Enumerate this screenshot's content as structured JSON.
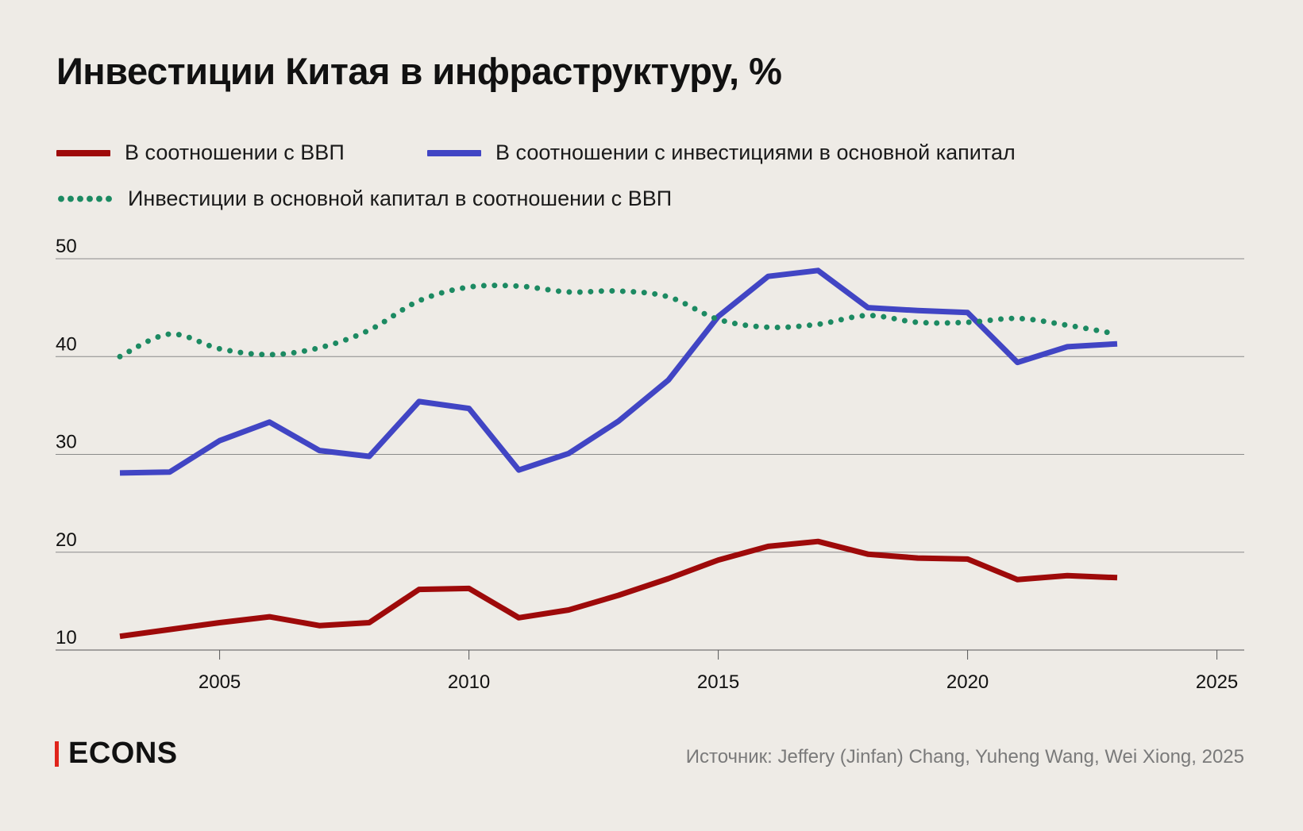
{
  "title": "Инвестиции Китая в инфраструктуру, %",
  "legend": [
    {
      "label": "В соотношении с ВВП",
      "color": "#9e0a0a",
      "style": "solid"
    },
    {
      "label": "В соотношении с инвестициями в основной капитал",
      "color": "#4145c4",
      "style": "solid"
    },
    {
      "label": "Инвестиции в основной капитал в соотношении с ВВП",
      "color": "#1c8a62",
      "style": "dotted"
    }
  ],
  "footer": {
    "logo": "ECONS",
    "source": "Источник: Jeffery (Jinfan) Chang, Yuheng Wang, Wei Xiong, 2025"
  },
  "colors": {
    "background": "#eeebe6",
    "gridline": "#8a8a8a",
    "axis_text": "#111111",
    "logo_accent": "#e0241b"
  },
  "chart_data": {
    "type": "line",
    "title": "Инвестиции Китая в инфраструктуру, %",
    "xlabel": "",
    "ylabel": "",
    "xlim": [
      2001.3,
      2026.1
    ],
    "ylim": [
      10,
      50
    ],
    "x_ticks": [
      2005,
      2010,
      2015,
      2020,
      2025
    ],
    "y_ticks": [
      10,
      20,
      30,
      40,
      50
    ],
    "grid": "horizontal",
    "legend_position": "top-left",
    "x": [
      2003,
      2004,
      2005,
      2006,
      2007,
      2008,
      2009,
      2010,
      2011,
      2012,
      2013,
      2014,
      2015,
      2016,
      2017,
      2018,
      2019,
      2020,
      2021,
      2022,
      2023
    ],
    "series": [
      {
        "name": "В соотношении с ВВП",
        "color": "#9e0a0a",
        "style": "solid",
        "values": [
          11.4,
          12.1,
          12.8,
          13.4,
          12.5,
          12.8,
          16.2,
          16.3,
          13.3,
          14.1,
          15.6,
          17.3,
          19.2,
          20.6,
          21.1,
          19.8,
          19.4,
          19.3,
          17.2,
          17.6,
          17.4
        ]
      },
      {
        "name": "В соотношении с инвестициями в основной капитал",
        "color": "#4145c4",
        "style": "solid",
        "values": [
          28.1,
          28.2,
          31.4,
          33.3,
          30.4,
          29.8,
          35.4,
          34.7,
          28.4,
          30.1,
          33.4,
          37.6,
          44.1,
          48.2,
          48.8,
          45.0,
          44.7,
          44.5,
          39.4,
          41.0,
          41.3
        ]
      },
      {
        "name": "Инвестиции в основной капитал в соотношении с ВВП",
        "color": "#1c8a62",
        "style": "dotted",
        "values": [
          40.0,
          42.3,
          40.8,
          40.2,
          40.9,
          42.7,
          45.7,
          47.1,
          47.2,
          46.6,
          46.7,
          46.1,
          43.8,
          43.0,
          43.3,
          44.2,
          43.5,
          43.5,
          43.9,
          43.2,
          42.3
        ]
      }
    ]
  }
}
